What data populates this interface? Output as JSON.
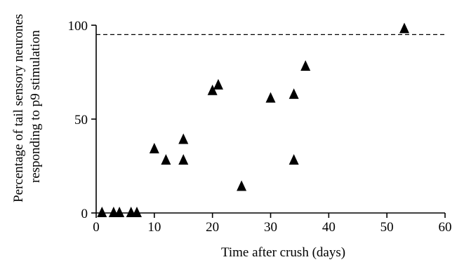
{
  "chart_data": {
    "type": "scatter",
    "title": "",
    "xlabel": "Time after crush (days)",
    "ylabel_lines": [
      "Percentage of tail sensory neurones",
      "responding to p9 stimulation"
    ],
    "xlim": [
      0,
      60
    ],
    "ylim": [
      0,
      100
    ],
    "xticks": [
      0,
      10,
      20,
      30,
      40,
      50,
      60
    ],
    "yticks": [
      0,
      50,
      100
    ],
    "grid": false,
    "marker": "filled-triangle",
    "reference_line": {
      "y": 95,
      "style": "dashed"
    },
    "points": [
      {
        "x": 1,
        "y": 0
      },
      {
        "x": 3,
        "y": 0
      },
      {
        "x": 4,
        "y": 0
      },
      {
        "x": 6,
        "y": 0
      },
      {
        "x": 7,
        "y": 0
      },
      {
        "x": 10,
        "y": 34
      },
      {
        "x": 12,
        "y": 28
      },
      {
        "x": 15,
        "y": 28
      },
      {
        "x": 15,
        "y": 39
      },
      {
        "x": 20,
        "y": 65
      },
      {
        "x": 21,
        "y": 68
      },
      {
        "x": 25,
        "y": 14
      },
      {
        "x": 30,
        "y": 61
      },
      {
        "x": 34,
        "y": 28
      },
      {
        "x": 34,
        "y": 63
      },
      {
        "x": 36,
        "y": 78
      },
      {
        "x": 53,
        "y": 98
      }
    ]
  }
}
